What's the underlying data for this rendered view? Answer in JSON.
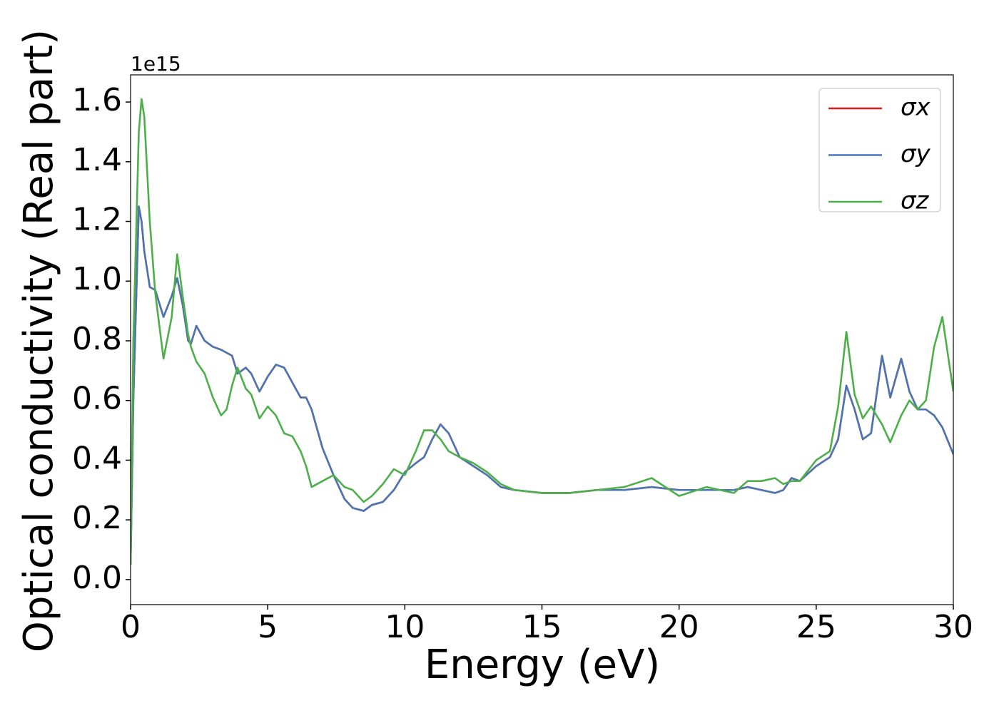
{
  "chart_data": {
    "type": "line",
    "xlabel": "Energy (eV)",
    "ylabel": "Optical conductivity (Real part)",
    "y_offset_label": "1e15",
    "xlim": [
      0,
      30
    ],
    "ylim": [
      -0.084,
      1.691
    ],
    "xticks": [
      0,
      5,
      10,
      15,
      20,
      25,
      30
    ],
    "yticks": [
      {
        "value": 0,
        "label": "0.0"
      },
      0.2,
      0.4,
      0.6,
      0.8,
      {
        "value": 1,
        "label": "1.0"
      },
      1.2,
      1.4,
      1.6
    ],
    "grid": false,
    "legend": "upper right",
    "x": [
      0,
      0.1,
      0.3,
      0.4,
      0.5,
      0.7,
      0.9,
      1.2,
      1.5,
      1.7,
      1.9,
      2.1,
      2.2,
      2.4,
      2.7,
      3.0,
      3.3,
      3.5,
      3.7,
      3.9,
      4.2,
      4.4,
      4.7,
      5.0,
      5.3,
      5.6,
      5.9,
      6.2,
      6.4,
      6.6,
      7.0,
      7.4,
      7.8,
      8.1,
      8.5,
      8.8,
      9.2,
      9.6,
      10.0,
      10.4,
      10.7,
      11.0,
      11.3,
      11.6,
      12.0,
      12.5,
      13.0,
      13.5,
      14,
      15,
      16,
      17,
      18,
      19,
      20,
      21,
      22,
      22.5,
      23,
      23.5,
      23.8,
      24.1,
      24.4,
      25,
      25.5,
      25.8,
      26.1,
      26.4,
      26.7,
      27.0,
      27.4,
      27.7,
      28.1,
      28.4,
      28.7,
      29.0,
      29.3,
      29.6,
      30
    ],
    "series": [
      {
        "name": "σx",
        "color": "#e41a1c",
        "values": [
          0.05,
          0.6,
          1.25,
          1.2,
          1.1,
          0.98,
          0.97,
          0.88,
          0.95,
          1.01,
          0.92,
          0.8,
          0.79,
          0.85,
          0.8,
          0.78,
          0.77,
          0.76,
          0.75,
          0.69,
          0.71,
          0.69,
          0.63,
          0.68,
          0.72,
          0.71,
          0.66,
          0.61,
          0.61,
          0.57,
          0.44,
          0.35,
          0.27,
          0.24,
          0.23,
          0.25,
          0.26,
          0.3,
          0.36,
          0.39,
          0.41,
          0.47,
          0.52,
          0.49,
          0.41,
          0.38,
          0.35,
          0.31,
          0.3,
          0.29,
          0.29,
          0.3,
          0.3,
          0.31,
          0.3,
          0.3,
          0.3,
          0.31,
          0.3,
          0.29,
          0.3,
          0.34,
          0.33,
          0.38,
          0.41,
          0.47,
          0.65,
          0.57,
          0.47,
          0.49,
          0.75,
          0.61,
          0.74,
          0.63,
          0.57,
          0.57,
          0.55,
          0.51,
          0.42
        ]
      },
      {
        "name": "σy",
        "color": "#4a77b4",
        "values": [
          0.05,
          0.6,
          1.25,
          1.2,
          1.1,
          0.98,
          0.97,
          0.88,
          0.95,
          1.01,
          0.92,
          0.8,
          0.79,
          0.85,
          0.8,
          0.78,
          0.77,
          0.76,
          0.75,
          0.69,
          0.71,
          0.69,
          0.63,
          0.68,
          0.72,
          0.71,
          0.66,
          0.61,
          0.61,
          0.57,
          0.44,
          0.35,
          0.27,
          0.24,
          0.23,
          0.25,
          0.26,
          0.3,
          0.36,
          0.39,
          0.41,
          0.47,
          0.52,
          0.49,
          0.41,
          0.38,
          0.35,
          0.31,
          0.3,
          0.29,
          0.29,
          0.3,
          0.3,
          0.31,
          0.3,
          0.3,
          0.3,
          0.31,
          0.3,
          0.29,
          0.3,
          0.34,
          0.33,
          0.38,
          0.41,
          0.47,
          0.65,
          0.57,
          0.47,
          0.49,
          0.75,
          0.61,
          0.74,
          0.63,
          0.57,
          0.57,
          0.55,
          0.51,
          0.42
        ]
      },
      {
        "name": "σz",
        "color": "#4daf4a",
        "values": [
          0.05,
          0.8,
          1.5,
          1.61,
          1.55,
          1.2,
          0.96,
          0.74,
          0.88,
          1.09,
          0.95,
          0.82,
          0.78,
          0.73,
          0.69,
          0.61,
          0.55,
          0.57,
          0.65,
          0.71,
          0.64,
          0.62,
          0.54,
          0.58,
          0.55,
          0.49,
          0.48,
          0.43,
          0.38,
          0.31,
          0.33,
          0.35,
          0.31,
          0.3,
          0.26,
          0.28,
          0.32,
          0.37,
          0.35,
          0.43,
          0.5,
          0.5,
          0.47,
          0.43,
          0.41,
          0.39,
          0.36,
          0.32,
          0.3,
          0.29,
          0.29,
          0.3,
          0.31,
          0.34,
          0.28,
          0.31,
          0.29,
          0.33,
          0.33,
          0.34,
          0.32,
          0.33,
          0.33,
          0.4,
          0.43,
          0.58,
          0.83,
          0.62,
          0.54,
          0.58,
          0.52,
          0.46,
          0.55,
          0.6,
          0.57,
          0.6,
          0.78,
          0.88,
          0.63
        ]
      }
    ]
  }
}
